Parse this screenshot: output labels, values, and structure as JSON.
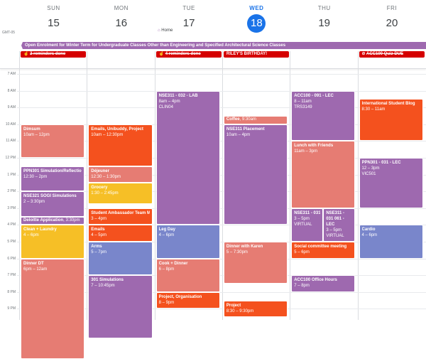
{
  "timezone": "GMT-05",
  "days": [
    {
      "name": "SUN",
      "num": "15"
    },
    {
      "name": "MON",
      "num": "16"
    },
    {
      "name": "TUE",
      "num": "17"
    },
    {
      "name": "WED",
      "num": "18",
      "today": true
    },
    {
      "name": "THU",
      "num": "19"
    },
    {
      "name": "FRI",
      "num": "20"
    }
  ],
  "working_location": {
    "icon": "home-icon",
    "label": "Home",
    "day": 2
  },
  "banner": "Open Enrolment for Winter Term for Undergraduate Classes Other than Engineering and Specified Architectural Science Classes",
  "allday": [
    {
      "day": 0,
      "icon": "hand-icon",
      "label": "2 reminders done",
      "done": true
    },
    {
      "day": 2,
      "icon": "hand-icon",
      "label": "4 reminders done",
      "done": true
    },
    {
      "day": 3,
      "icon": "",
      "label": "RILEY'S BIRTHDAY!",
      "done": false
    },
    {
      "day": 5,
      "icon": "check-circle-icon",
      "label": "ACC100 Quiz DUE",
      "done": true
    }
  ],
  "hours": [
    "7 AM",
    "8 AM",
    "9 AM",
    "10 AM",
    "11 AM",
    "12 PM",
    "1 PM",
    "2 PM",
    "3 PM",
    "4 PM",
    "5 PM",
    "6 PM",
    "7 PM",
    "8 PM",
    "9 PM"
  ],
  "colors": {
    "purple": "#9e69af",
    "salmon": "#e67c73",
    "orange": "#f4511e",
    "yellow": "#f6bf26",
    "blue": "#7986cb",
    "red": "#d50000",
    "today": "#1a73e8"
  },
  "events": [
    {
      "day": 0,
      "start": 10,
      "end": 12,
      "title": "Dimsum",
      "time": "10am – 12pm",
      "color": "salmon"
    },
    {
      "day": 0,
      "start": 12.5,
      "end": 14,
      "title": "PPN301 Simulation/Reflection",
      "time": "12:30 – 2pm",
      "color": "purple"
    },
    {
      "day": 0,
      "start": 14,
      "end": 15.5,
      "title": "NSE321 SOGI Simulations",
      "time": "2 – 3:30pm",
      "color": "purple"
    },
    {
      "day": 0,
      "start": 15.5,
      "end": 16,
      "title": "Deloitte Application",
      "time": "3:30pm",
      "inline": true,
      "color": "purple"
    },
    {
      "day": 0,
      "start": 16,
      "end": 18,
      "title": "Clean + Laundry",
      "time": "4 – 6pm",
      "color": "yellow"
    },
    {
      "day": 0,
      "start": 18,
      "end": 24,
      "title": "Dinner DT",
      "time": "6pm – 12am",
      "color": "salmon"
    },
    {
      "day": 1,
      "start": 10,
      "end": 12.5,
      "title": "Emails, Unibuddy, Project",
      "time": "10am – 12:30pm",
      "color": "orange"
    },
    {
      "day": 1,
      "start": 12.5,
      "end": 13.5,
      "title": "Déjeuner",
      "time": "12:30 – 1:30pm",
      "color": "salmon"
    },
    {
      "day": 1,
      "start": 13.5,
      "end": 14.75,
      "title": "Grocery",
      "time": "1:30 – 2:45pm",
      "color": "yellow"
    },
    {
      "day": 1,
      "start": 15,
      "end": 16,
      "title": "Student Ambassador Team Meeting",
      "time": "3 – 4pm",
      "color": "orange"
    },
    {
      "day": 1,
      "start": 16,
      "end": 17,
      "title": "Emails",
      "time": "4 – 5pm",
      "color": "orange"
    },
    {
      "day": 1,
      "start": 17,
      "end": 19,
      "title": "Arms",
      "time": "5 – 7pm",
      "color": "blue"
    },
    {
      "day": 1,
      "start": 19,
      "end": 22.75,
      "title": "301 Simulations",
      "time": "7 – 10:45pm",
      "color": "purple"
    },
    {
      "day": 2,
      "start": 8,
      "end": 16,
      "title": "NSE311 - 032 - LAB",
      "time": "8am – 4pm",
      "loc": "CLIN04",
      "color": "purple"
    },
    {
      "day": 2,
      "start": 16,
      "end": 18,
      "title": "Leg Day",
      "time": "4 – 6pm",
      "color": "blue"
    },
    {
      "day": 2,
      "start": 18,
      "end": 20,
      "title": "Cook + Dinner",
      "time": "6 – 8pm",
      "color": "salmon"
    },
    {
      "day": 2,
      "start": 20,
      "end": 21,
      "title": "Project, Organisation",
      "time": "8 – 9pm",
      "color": "orange"
    },
    {
      "day": 3,
      "start": 9.5,
      "end": 10,
      "title": "Coffee",
      "time": "9:30am",
      "inline": true,
      "color": "salmon"
    },
    {
      "day": 3,
      "start": 10,
      "end": 16,
      "title": "NSE311 Placement",
      "time": "10am – 4pm",
      "color": "purple"
    },
    {
      "day": 3,
      "start": 17,
      "end": 19.5,
      "title": "Dinner with Karen",
      "time": "5 – 7:30pm",
      "color": "salmon"
    },
    {
      "day": 3,
      "start": 20.5,
      "end": 21.5,
      "title": "Project",
      "time": "8:30 – 9:30pm",
      "color": "orange"
    },
    {
      "day": 4,
      "start": 8,
      "end": 11,
      "title": "ACC100 - 091 - LEC",
      "time": "8 – 11am",
      "loc": "TRS3149",
      "color": "purple"
    },
    {
      "day": 4,
      "start": 11,
      "end": 15,
      "title": "Lunch with Friends",
      "time": "11am – 3pm",
      "color": "salmon"
    },
    {
      "day": 4,
      "start": 15,
      "end": 17,
      "title": "NSE311 - 031 - LEC",
      "time": "3 – 5pm",
      "loc": "VIRTUAL",
      "color": "purple",
      "half": 0
    },
    {
      "day": 4,
      "start": 15,
      "end": 17,
      "title": "NSE311 - 031 061 - LEC",
      "time": "3 – 5pm",
      "loc": "VIRTUAL",
      "color": "purple",
      "half": 1,
      "wrap": true
    },
    {
      "day": 4,
      "start": 17,
      "end": 18,
      "title": "Social committee meeting",
      "time": "5 – 6pm",
      "color": "orange"
    },
    {
      "day": 4,
      "start": 19,
      "end": 20,
      "title": "ACC100 Office Hours",
      "time": "7 – 8pm",
      "color": "purple"
    },
    {
      "day": 5,
      "start": 8.5,
      "end": 11,
      "title": "International Student Blog",
      "time": "8:30 – 11am",
      "color": "orange"
    },
    {
      "day": 5,
      "start": 12,
      "end": 15,
      "title": "PPN301 - 031 - LEC",
      "time": "12 – 3pm",
      "loc": "VIC501",
      "color": "purple"
    },
    {
      "day": 5,
      "start": 16,
      "end": 18,
      "title": "Cardio",
      "time": "4 – 6pm",
      "color": "blue"
    }
  ],
  "current_time": {
    "day": 3,
    "hour": 21.7
  }
}
